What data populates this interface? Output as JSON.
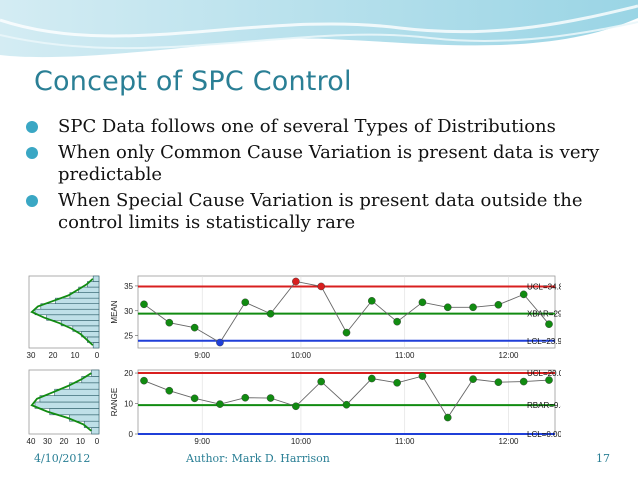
{
  "slide": {
    "title": "Concept of SPC Control",
    "bullets": [
      "SPC Data follows one of several Types of Distributions",
      "When only Common Cause Variation is present data is very predictable",
      "When Special Cause Variation is present data outside the control limits is statistically rare"
    ],
    "footer": {
      "date": "4/10/2012",
      "author": "Author: Mark D. Harrison",
      "page": "17"
    },
    "colors": {
      "title": "#2a7f95",
      "bullet": "#3aa7c4",
      "ucl": "#d81f1f",
      "center": "#118b11",
      "lcl": "#1f3fd8",
      "hist": "#bfe0e8"
    }
  },
  "chart_data": [
    {
      "type": "line",
      "ylabel": "MEAN",
      "ylim": [
        22.5,
        37
      ],
      "yticks": [
        25,
        30,
        35
      ],
      "xticks": [
        "9:00",
        "10:00",
        "11:00",
        "12:00"
      ],
      "limits": {
        "ucl": 34.88,
        "center": 29.42,
        "lcl": 23.95
      },
      "limit_labels": {
        "ucl": "UCL=34.88",
        "center": "XBAR=29.42",
        "lcl": "LCL=23.95"
      },
      "x": [
        0.0,
        0.5,
        1.0,
        1.5,
        2.0,
        2.5,
        3.0,
        3.5,
        4.0,
        4.5,
        5.0,
        5.5,
        6.0,
        6.5,
        7.0,
        7.5,
        8.0
      ],
      "values": [
        31.3,
        27.6,
        26.6,
        23.6,
        31.7,
        29.4,
        35.9,
        34.9,
        25.6,
        32.0,
        27.8,
        31.7,
        30.7,
        30.7,
        31.2,
        33.3,
        27.3
      ],
      "point_status": [
        "ok",
        "ok",
        "ok",
        "low",
        "ok",
        "ok",
        "high",
        "high",
        "ok",
        "ok",
        "ok",
        "ok",
        "ok",
        "ok",
        "ok",
        "ok",
        "ok"
      ],
      "histogram": {
        "bins": [
          24,
          25,
          26,
          27,
          28,
          29,
          30,
          31,
          32,
          33,
          34,
          35,
          36
        ],
        "counts": [
          2,
          4,
          6,
          9,
          13,
          18,
          22,
          20,
          15,
          10,
          7,
          4,
          2
        ]
      },
      "hist_ticks": [
        "30",
        "20",
        "10",
        "0"
      ]
    },
    {
      "type": "line",
      "ylabel": "RANGE",
      "ylim": [
        0,
        21
      ],
      "yticks": [
        0,
        10,
        20
      ],
      "xticks": [
        "9:00",
        "10:00",
        "11:00",
        "12:00"
      ],
      "limits": {
        "ucl": 20.03,
        "center": 9.47,
        "lcl": 0.0
      },
      "limit_labels": {
        "ucl": "UCL=20.03",
        "center": "RBAR=9.47",
        "lcl": "LCL=0.00"
      },
      "x": [
        0.0,
        0.5,
        1.0,
        1.5,
        2.0,
        2.5,
        3.0,
        3.5,
        4.0,
        4.5,
        5.0,
        5.5,
        6.0,
        6.5,
        7.0,
        7.5,
        8.0
      ],
      "values": [
        17.5,
        14.2,
        11.7,
        9.8,
        11.9,
        11.8,
        9.1,
        17.2,
        9.6,
        18.2,
        16.8,
        19.0,
        5.4,
        18.0,
        17.0,
        17.2,
        17.7
      ],
      "point_status": [
        "ok",
        "ok",
        "ok",
        "ok",
        "ok",
        "ok",
        "ok",
        "ok",
        "ok",
        "ok",
        "ok",
        "ok",
        "ok",
        "ok",
        "ok",
        "ok",
        "ok"
      ],
      "histogram": {
        "bins": [
          2,
          4,
          6,
          8,
          10,
          12,
          14,
          16,
          18,
          20
        ],
        "counts": [
          3,
          6,
          12,
          20,
          26,
          24,
          18,
          12,
          7,
          3
        ]
      },
      "hist_ticks": [
        "40",
        "30",
        "20",
        "10",
        "0"
      ]
    }
  ]
}
